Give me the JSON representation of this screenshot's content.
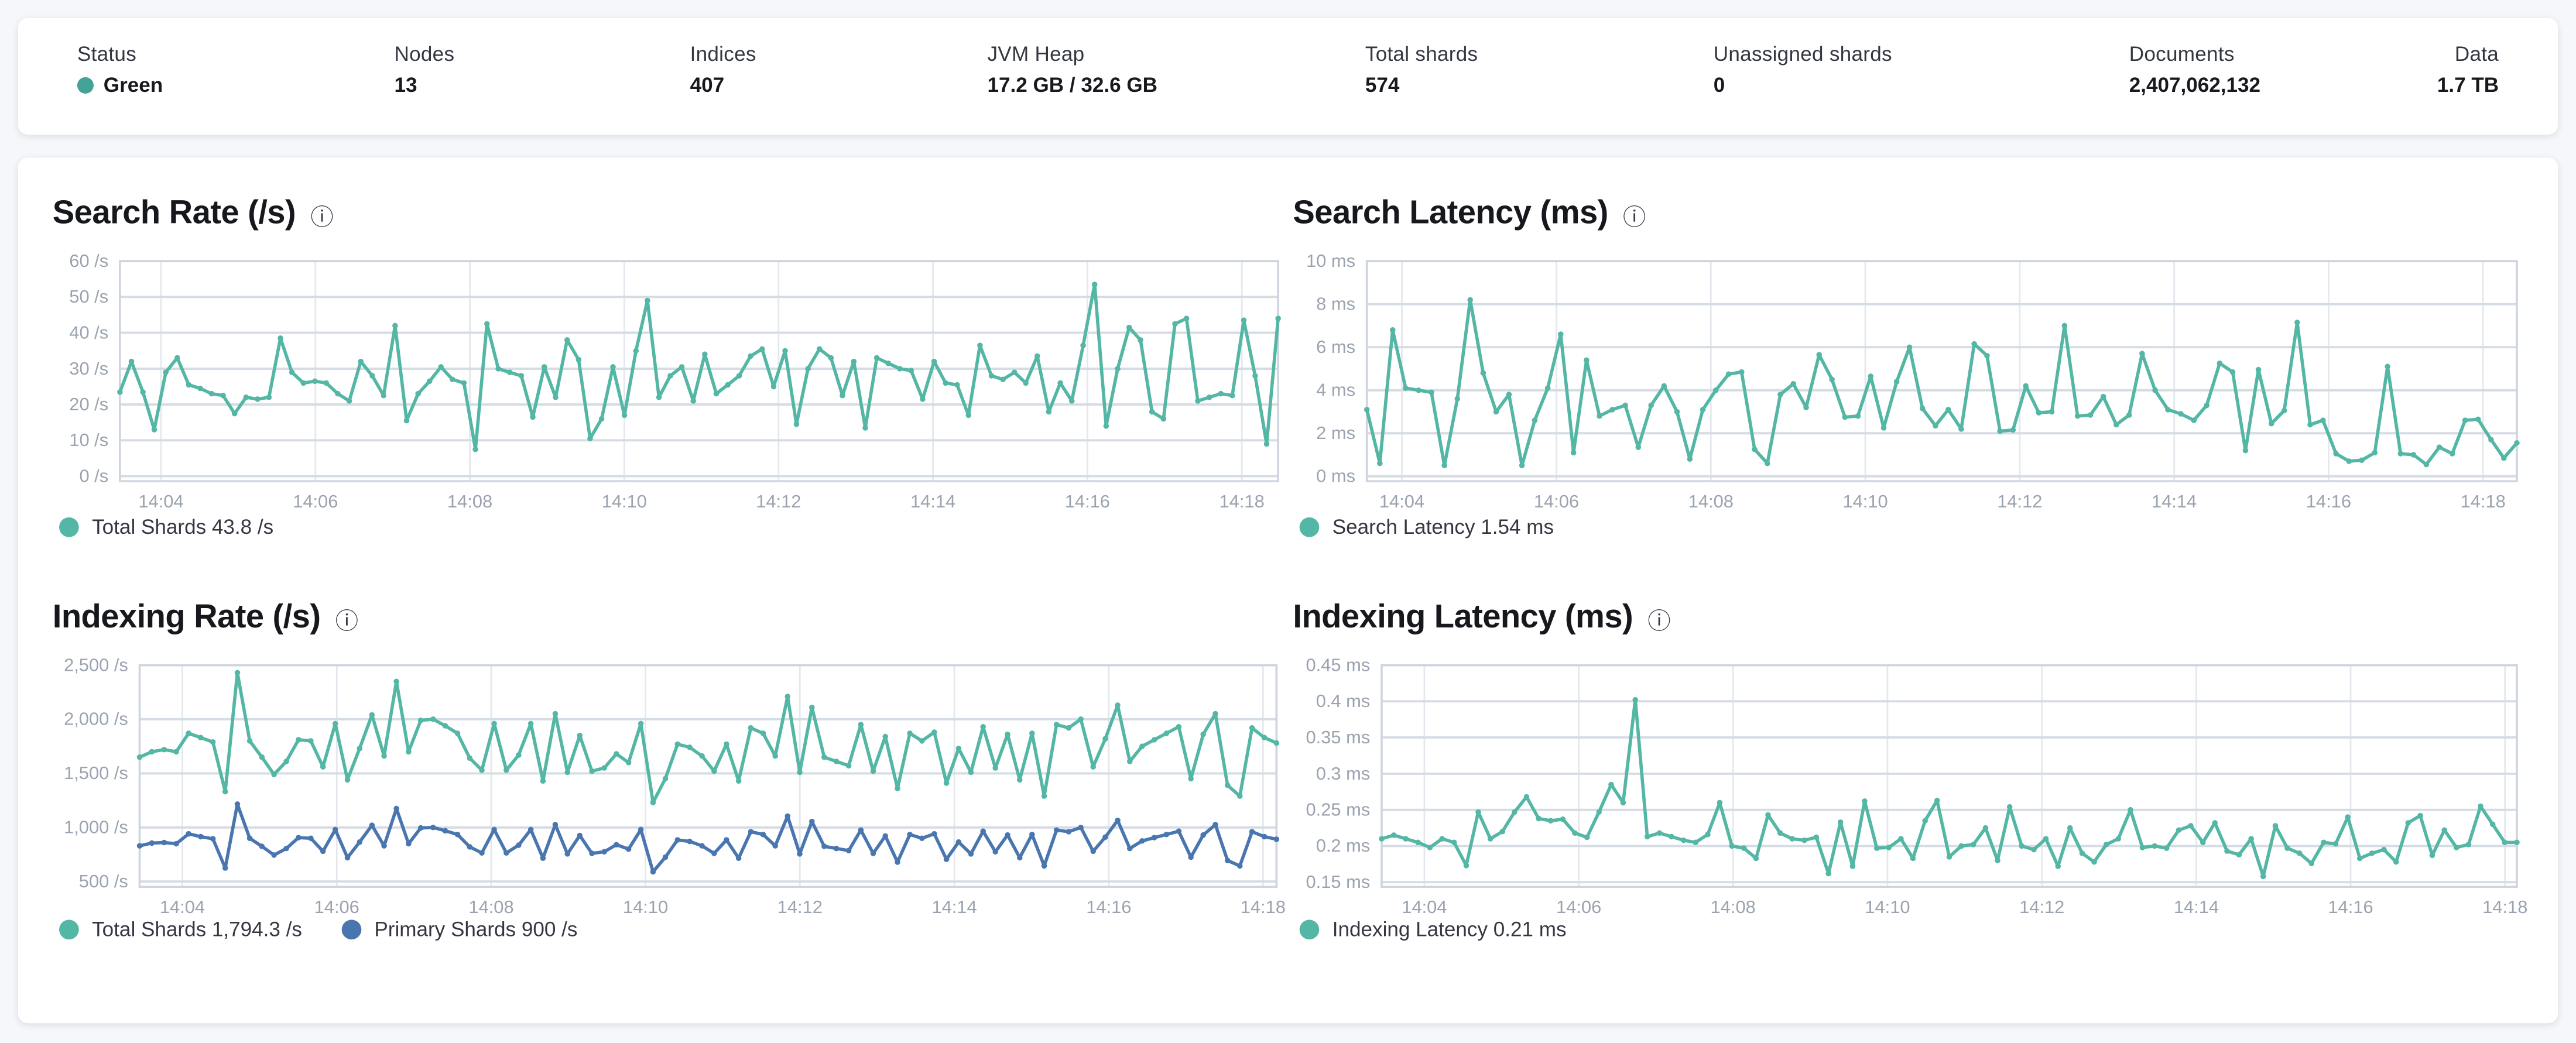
{
  "header": {
    "stats": [
      {
        "label": "Status",
        "value": "Green",
        "dot_color": "#43a396"
      },
      {
        "label": "Nodes",
        "value": "13"
      },
      {
        "label": "Indices",
        "value": "407"
      },
      {
        "label": "JVM Heap",
        "value": "17.2 GB / 32.6 GB"
      },
      {
        "label": "Total shards",
        "value": "574"
      },
      {
        "label": "Unassigned shards",
        "value": "0"
      },
      {
        "label": "Documents",
        "value": "2,407,062,132"
      },
      {
        "label": "Data",
        "value": "1.7 TB"
      }
    ]
  },
  "colors": {
    "teal": "#54b6a4",
    "blue": "#4a76b0",
    "status_green": "#43a396"
  },
  "chart_data": [
    {
      "type": "line",
      "title": "Search Rate (/s)",
      "info_icon": "info-icon",
      "xlabel": "",
      "ylabel": "/s",
      "ylim": [
        -1.4,
        60
      ],
      "y_ticks": [
        {
          "value": 60,
          "label": "60 /s"
        },
        {
          "value": 50,
          "label": "50 /s"
        },
        {
          "value": 40,
          "label": "40 /s"
        },
        {
          "value": 30,
          "label": "30 /s"
        },
        {
          "value": 20,
          "label": "20 /s"
        },
        {
          "value": 10,
          "label": "10 /s"
        },
        {
          "value": 0,
          "label": "0 /s"
        }
      ],
      "x_ticks": [
        "14:04",
        "14:06",
        "14:08",
        "14:10",
        "14:12",
        "14:14",
        "14:16",
        "14:18"
      ],
      "legend": [
        {
          "label": "Total Shards 43.8 /s",
          "color": "#54b6a4"
        }
      ],
      "series": [
        {
          "name": "Total Shards",
          "color": "#54b6a4",
          "values": [
            23.5,
            32,
            23.5,
            13,
            29,
            33,
            25.5,
            24.5,
            23,
            22.5,
            17.5,
            22,
            21.5,
            22,
            38.5,
            29,
            26,
            26.5,
            26,
            23,
            21,
            32,
            28,
            22.5,
            42,
            15.5,
            23,
            26.5,
            30.5,
            27,
            26,
            7.5,
            42.5,
            30,
            29,
            28,
            16.5,
            30.5,
            22,
            38,
            32.5,
            10.5,
            16,
            30.5,
            17,
            35,
            49,
            22,
            28,
            30.5,
            21,
            34,
            23,
            25.5,
            28,
            33.5,
            35.5,
            25,
            35,
            14.5,
            30,
            35.5,
            33,
            22.5,
            32,
            13.5,
            33,
            31.5,
            30,
            29.5,
            21.5,
            32,
            26,
            25.5,
            17,
            36.5,
            28,
            27,
            29,
            26,
            33.5,
            18,
            26,
            21,
            36.5,
            53.5,
            14,
            30,
            41.5,
            38,
            18,
            16,
            42.5,
            44,
            21,
            22,
            23,
            22.5,
            43.5,
            28,
            9,
            44
          ]
        }
      ]
    },
    {
      "type": "line",
      "title": "Search Latency (ms)",
      "info_icon": "info-icon",
      "xlabel": "",
      "ylabel": "ms",
      "ylim": [
        -0.23,
        10
      ],
      "y_ticks": [
        {
          "value": 10,
          "label": "10 ms"
        },
        {
          "value": 8,
          "label": "8 ms"
        },
        {
          "value": 6,
          "label": "6 ms"
        },
        {
          "value": 4,
          "label": "4 ms"
        },
        {
          "value": 2,
          "label": "2 ms"
        },
        {
          "value": 0,
          "label": "0 ms"
        }
      ],
      "x_ticks": [
        "14:04",
        "14:06",
        "14:08",
        "14:10",
        "14:12",
        "14:14",
        "14:16",
        "14:18"
      ],
      "legend": [
        {
          "label": "Search Latency 1.54 ms",
          "color": "#54b6a4"
        }
      ],
      "series": [
        {
          "name": "Search Latency",
          "color": "#54b6a4",
          "values": [
            3.1,
            0.6,
            6.8,
            4.1,
            4.0,
            3.9,
            0.5,
            3.6,
            8.2,
            4.8,
            3.0,
            3.8,
            0.5,
            2.6,
            4.1,
            6.6,
            1.1,
            5.4,
            2.8,
            3.1,
            3.3,
            1.35,
            3.3,
            4.2,
            3.0,
            0.8,
            3.1,
            4.0,
            4.75,
            4.85,
            1.25,
            0.6,
            3.8,
            4.3,
            3.2,
            5.65,
            4.5,
            2.75,
            2.8,
            4.65,
            2.25,
            4.4,
            6.0,
            3.15,
            2.35,
            3.1,
            2.2,
            6.15,
            5.6,
            2.1,
            2.15,
            4.2,
            2.95,
            3.0,
            7.0,
            2.8,
            2.85,
            3.7,
            2.4,
            2.85,
            5.7,
            4.0,
            3.1,
            2.9,
            2.6,
            3.3,
            5.25,
            4.85,
            1.2,
            4.95,
            2.45,
            3.05,
            7.15,
            2.4,
            2.6,
            1.05,
            0.7,
            0.75,
            1.1,
            5.1,
            1.05,
            1.0,
            0.55,
            1.35,
            1.05,
            2.6,
            2.65,
            1.7,
            0.85,
            1.55
          ]
        }
      ]
    },
    {
      "type": "line",
      "title": "Indexing Rate (/s)",
      "info_icon": "info-icon",
      "xlabel": "",
      "ylabel": "/s",
      "ylim": [
        450,
        2500
      ],
      "y_ticks": [
        {
          "value": 2500,
          "label": "2,500 /s"
        },
        {
          "value": 2000,
          "label": "2,000 /s"
        },
        {
          "value": 1500,
          "label": "1,500 /s"
        },
        {
          "value": 1000,
          "label": "1,000 /s"
        },
        {
          "value": 500,
          "label": "500 /s"
        }
      ],
      "x_ticks": [
        "14:04",
        "14:06",
        "14:08",
        "14:10",
        "14:12",
        "14:14",
        "14:16",
        "14:18"
      ],
      "legend": [
        {
          "label": "Total Shards 1,794.3 /s",
          "color": "#54b6a4"
        },
        {
          "label": "Primary Shards 900 /s",
          "color": "#4a76b0"
        }
      ],
      "series": [
        {
          "name": "Total Shards",
          "color": "#54b6a4",
          "values": [
            1650,
            1700,
            1720,
            1700,
            1870,
            1830,
            1790,
            1330,
            2430,
            1800,
            1650,
            1490,
            1610,
            1810,
            1800,
            1560,
            1960,
            1440,
            1730,
            2040,
            1660,
            2350,
            1700,
            1990,
            2000,
            1940,
            1870,
            1640,
            1530,
            1960,
            1530,
            1670,
            1960,
            1430,
            2050,
            1510,
            1850,
            1520,
            1550,
            1680,
            1600,
            1960,
            1230,
            1450,
            1770,
            1740,
            1660,
            1520,
            1770,
            1430,
            1920,
            1870,
            1660,
            2210,
            1510,
            2110,
            1650,
            1610,
            1570,
            1950,
            1520,
            1840,
            1360,
            1870,
            1800,
            1880,
            1410,
            1730,
            1510,
            1930,
            1550,
            1860,
            1440,
            1870,
            1290,
            1950,
            1920,
            2000,
            1560,
            1820,
            2130,
            1610,
            1750,
            1810,
            1870,
            1930,
            1450,
            1860,
            2050,
            1390,
            1290,
            1920,
            1830,
            1780
          ]
        },
        {
          "name": "Primary Shards",
          "color": "#4a76b0",
          "values": [
            830,
            855,
            860,
            850,
            940,
            915,
            895,
            625,
            1215,
            900,
            825,
            745,
            805,
            905,
            900,
            780,
            980,
            720,
            865,
            1020,
            830,
            1175,
            850,
            995,
            1000,
            970,
            935,
            820,
            765,
            980,
            765,
            835,
            980,
            715,
            1025,
            755,
            925,
            760,
            775,
            840,
            800,
            980,
            590,
            725,
            885,
            870,
            830,
            760,
            885,
            715,
            960,
            935,
            830,
            1105,
            755,
            1055,
            825,
            805,
            785,
            975,
            760,
            920,
            680,
            935,
            900,
            940,
            705,
            865,
            755,
            965,
            775,
            930,
            720,
            935,
            645,
            975,
            960,
            1000,
            780,
            910,
            1065,
            805,
            875,
            905,
            935,
            965,
            725,
            930,
            1025,
            695,
            645,
            960,
            915,
            890
          ]
        }
      ]
    },
    {
      "type": "line",
      "title": "Indexing Latency (ms)",
      "info_icon": "info-icon",
      "xlabel": "",
      "ylabel": "ms",
      "ylim": [
        0.1435,
        0.45
      ],
      "y_ticks": [
        {
          "value": 0.45,
          "label": "0.45 ms"
        },
        {
          "value": 0.4,
          "label": "0.4 ms"
        },
        {
          "value": 0.35,
          "label": "0.35 ms"
        },
        {
          "value": 0.3,
          "label": "0.3 ms"
        },
        {
          "value": 0.25,
          "label": "0.25 ms"
        },
        {
          "value": 0.2,
          "label": "0.2 ms"
        },
        {
          "value": 0.15,
          "label": "0.15 ms"
        }
      ],
      "x_ticks": [
        "14:04",
        "14:06",
        "14:08",
        "14:10",
        "14:12",
        "14:14",
        "14:16",
        "14:18"
      ],
      "legend": [
        {
          "label": "Indexing Latency 0.21 ms",
          "color": "#54b6a4"
        }
      ],
      "series": [
        {
          "name": "Indexing Latency",
          "color": "#54b6a4",
          "values": [
            0.21,
            0.215,
            0.21,
            0.205,
            0.198,
            0.21,
            0.205,
            0.173,
            0.247,
            0.21,
            0.22,
            0.247,
            0.268,
            0.238,
            0.235,
            0.237,
            0.218,
            0.212,
            0.247,
            0.285,
            0.26,
            0.402,
            0.213,
            0.218,
            0.213,
            0.208,
            0.205,
            0.216,
            0.26,
            0.2,
            0.197,
            0.183,
            0.243,
            0.218,
            0.21,
            0.208,
            0.212,
            0.162,
            0.233,
            0.172,
            0.262,
            0.197,
            0.198,
            0.21,
            0.183,
            0.235,
            0.263,
            0.185,
            0.2,
            0.202,
            0.225,
            0.18,
            0.254,
            0.2,
            0.195,
            0.21,
            0.172,
            0.225,
            0.19,
            0.178,
            0.202,
            0.21,
            0.25,
            0.198,
            0.2,
            0.197,
            0.222,
            0.228,
            0.205,
            0.232,
            0.193,
            0.188,
            0.21,
            0.158,
            0.228,
            0.197,
            0.19,
            0.176,
            0.205,
            0.203,
            0.24,
            0.183,
            0.19,
            0.195,
            0.178,
            0.232,
            0.242,
            0.187,
            0.222,
            0.198,
            0.202,
            0.255,
            0.23,
            0.205,
            0.205
          ]
        }
      ]
    }
  ]
}
